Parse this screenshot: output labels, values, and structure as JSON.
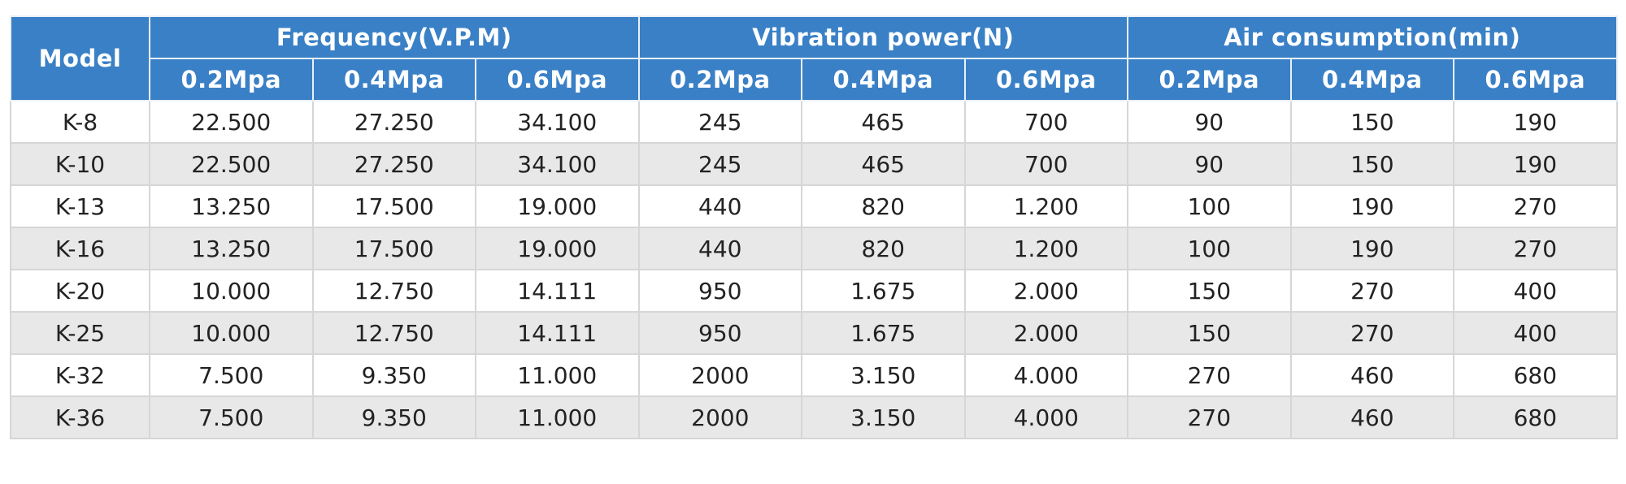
{
  "table": {
    "model_header": "Model",
    "groups": [
      {
        "label": "Frequency(V.P.M)",
        "subheaders": [
          "0.2Mpa",
          "0.4Mpa",
          "0.6Mpa"
        ]
      },
      {
        "label": "Vibration power(N)",
        "subheaders": [
          "0.2Mpa",
          "0.4Mpa",
          "0.6Mpa"
        ]
      },
      {
        "label": "Air consumption(min)",
        "subheaders": [
          "0.2Mpa",
          "0.4Mpa",
          "0.6Mpa"
        ]
      }
    ],
    "rows": [
      [
        "K-8",
        "22.500",
        "27.250",
        "34.100",
        "245",
        "465",
        "700",
        "90",
        "150",
        "190"
      ],
      [
        "K-10",
        "22.500",
        "27.250",
        "34.100",
        "245",
        "465",
        "700",
        "90",
        "150",
        "190"
      ],
      [
        "K-13",
        "13.250",
        "17.500",
        "19.000",
        "440",
        "820",
        "1.200",
        "100",
        "190",
        "270"
      ],
      [
        "K-16",
        "13.250",
        "17.500",
        "19.000",
        "440",
        "820",
        "1.200",
        "100",
        "190",
        "270"
      ],
      [
        "K-20",
        "10.000",
        "12.750",
        "14.111",
        "950",
        "1.675",
        "2.000",
        "150",
        "270",
        "400"
      ],
      [
        "K-25",
        "10.000",
        "12.750",
        "14.111",
        "950",
        "1.675",
        "2.000",
        "150",
        "270",
        "400"
      ],
      [
        "K-32",
        "7.500",
        "9.350",
        "11.000",
        "2000",
        "3.150",
        "4.000",
        "270",
        "460",
        "680"
      ],
      [
        "K-36",
        "7.500",
        "9.350",
        "11.000",
        "2000",
        "3.150",
        "4.000",
        "270",
        "460",
        "680"
      ]
    ]
  }
}
